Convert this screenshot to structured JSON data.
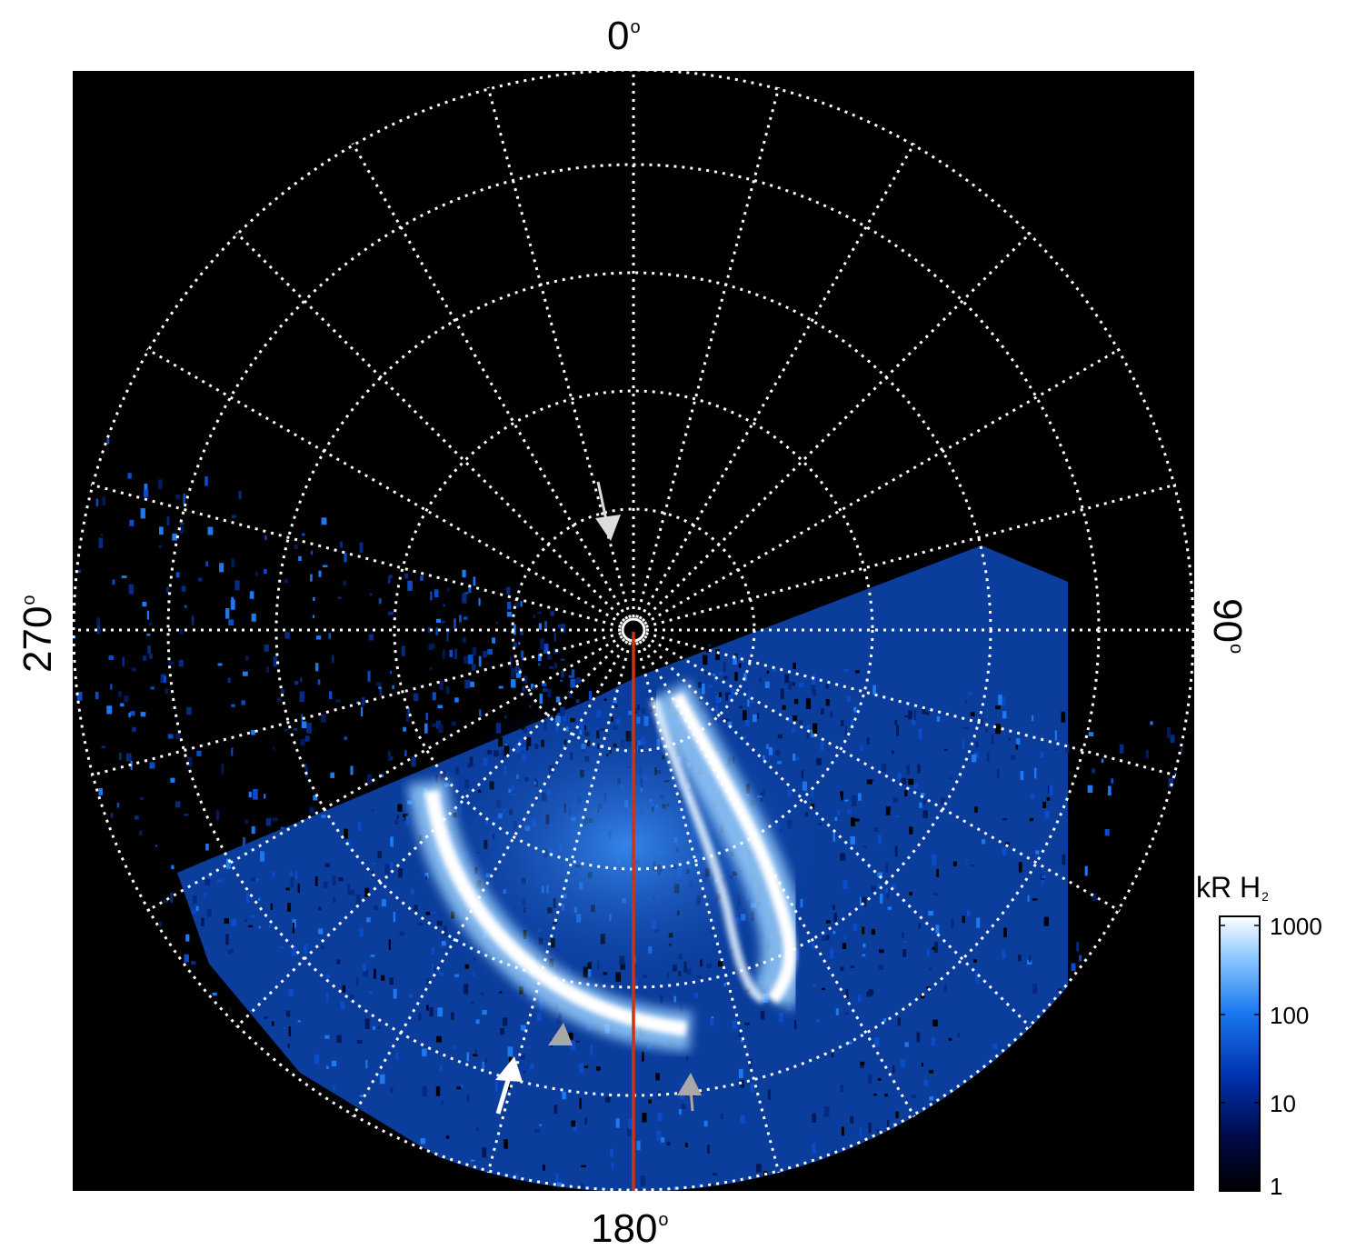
{
  "image": {
    "description_free": true,
    "directions": {
      "top": "0",
      "right": "90",
      "bottom": "180",
      "left": "270"
    },
    "degree_symbol": "o",
    "colorbar": {
      "title": "kR H",
      "title_subscript": "2",
      "ticks": [
        "1000",
        "100",
        "10",
        "1"
      ],
      "scale": "log",
      "colors": [
        "#000000",
        "#000a4a",
        "#0033b0",
        "#1a78f0",
        "#8cc8ff",
        "#ffffff"
      ]
    },
    "colors": {
      "background": "#000000",
      "grid": "#ffffff",
      "meridian_line": "#cc3311",
      "arrow_white": "#ffffff",
      "arrow_gray": "#a8a8a8"
    }
  }
}
